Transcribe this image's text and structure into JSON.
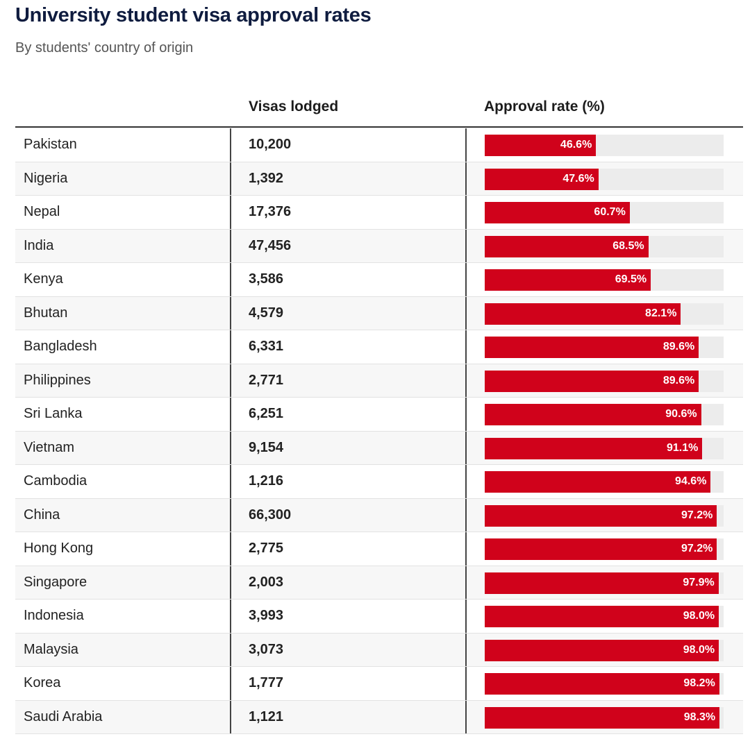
{
  "title": "University student visa approval rates",
  "subtitle": "By students' country of origin",
  "columns": {
    "visas": "Visas lodged",
    "rate": "Approval rate (%)"
  },
  "colors": {
    "bar": "#d0021b",
    "track": "#ececec",
    "title": "#0f1c3f"
  },
  "chart_data": {
    "type": "table",
    "xlim": [
      0,
      100
    ],
    "rows": [
      {
        "country": "Pakistan",
        "visas": "10,200",
        "rate": 46.6,
        "rate_label": "46.6%"
      },
      {
        "country": "Nigeria",
        "visas": "1,392",
        "rate": 47.6,
        "rate_label": "47.6%"
      },
      {
        "country": "Nepal",
        "visas": "17,376",
        "rate": 60.7,
        "rate_label": "60.7%"
      },
      {
        "country": "India",
        "visas": "47,456",
        "rate": 68.5,
        "rate_label": "68.5%"
      },
      {
        "country": "Kenya",
        "visas": "3,586",
        "rate": 69.5,
        "rate_label": "69.5%"
      },
      {
        "country": "Bhutan",
        "visas": "4,579",
        "rate": 82.1,
        "rate_label": "82.1%"
      },
      {
        "country": "Bangladesh",
        "visas": "6,331",
        "rate": 89.6,
        "rate_label": "89.6%"
      },
      {
        "country": "Philippines",
        "visas": "2,771",
        "rate": 89.6,
        "rate_label": "89.6%"
      },
      {
        "country": "Sri Lanka",
        "visas": "6,251",
        "rate": 90.6,
        "rate_label": "90.6%"
      },
      {
        "country": "Vietnam",
        "visas": "9,154",
        "rate": 91.1,
        "rate_label": "91.1%"
      },
      {
        "country": "Cambodia",
        "visas": "1,216",
        "rate": 94.6,
        "rate_label": "94.6%"
      },
      {
        "country": "China",
        "visas": "66,300",
        "rate": 97.2,
        "rate_label": "97.2%"
      },
      {
        "country": "Hong Kong",
        "visas": "2,775",
        "rate": 97.2,
        "rate_label": "97.2%"
      },
      {
        "country": "Singapore",
        "visas": "2,003",
        "rate": 97.9,
        "rate_label": "97.9%"
      },
      {
        "country": "Indonesia",
        "visas": "3,993",
        "rate": 98.0,
        "rate_label": "98.0%"
      },
      {
        "country": "Malaysia",
        "visas": "3,073",
        "rate": 98.0,
        "rate_label": "98.0%"
      },
      {
        "country": "Korea",
        "visas": "1,777",
        "rate": 98.2,
        "rate_label": "98.2%"
      },
      {
        "country": "Saudi Arabia",
        "visas": "1,121",
        "rate": 98.3,
        "rate_label": "98.3%"
      }
    ]
  }
}
